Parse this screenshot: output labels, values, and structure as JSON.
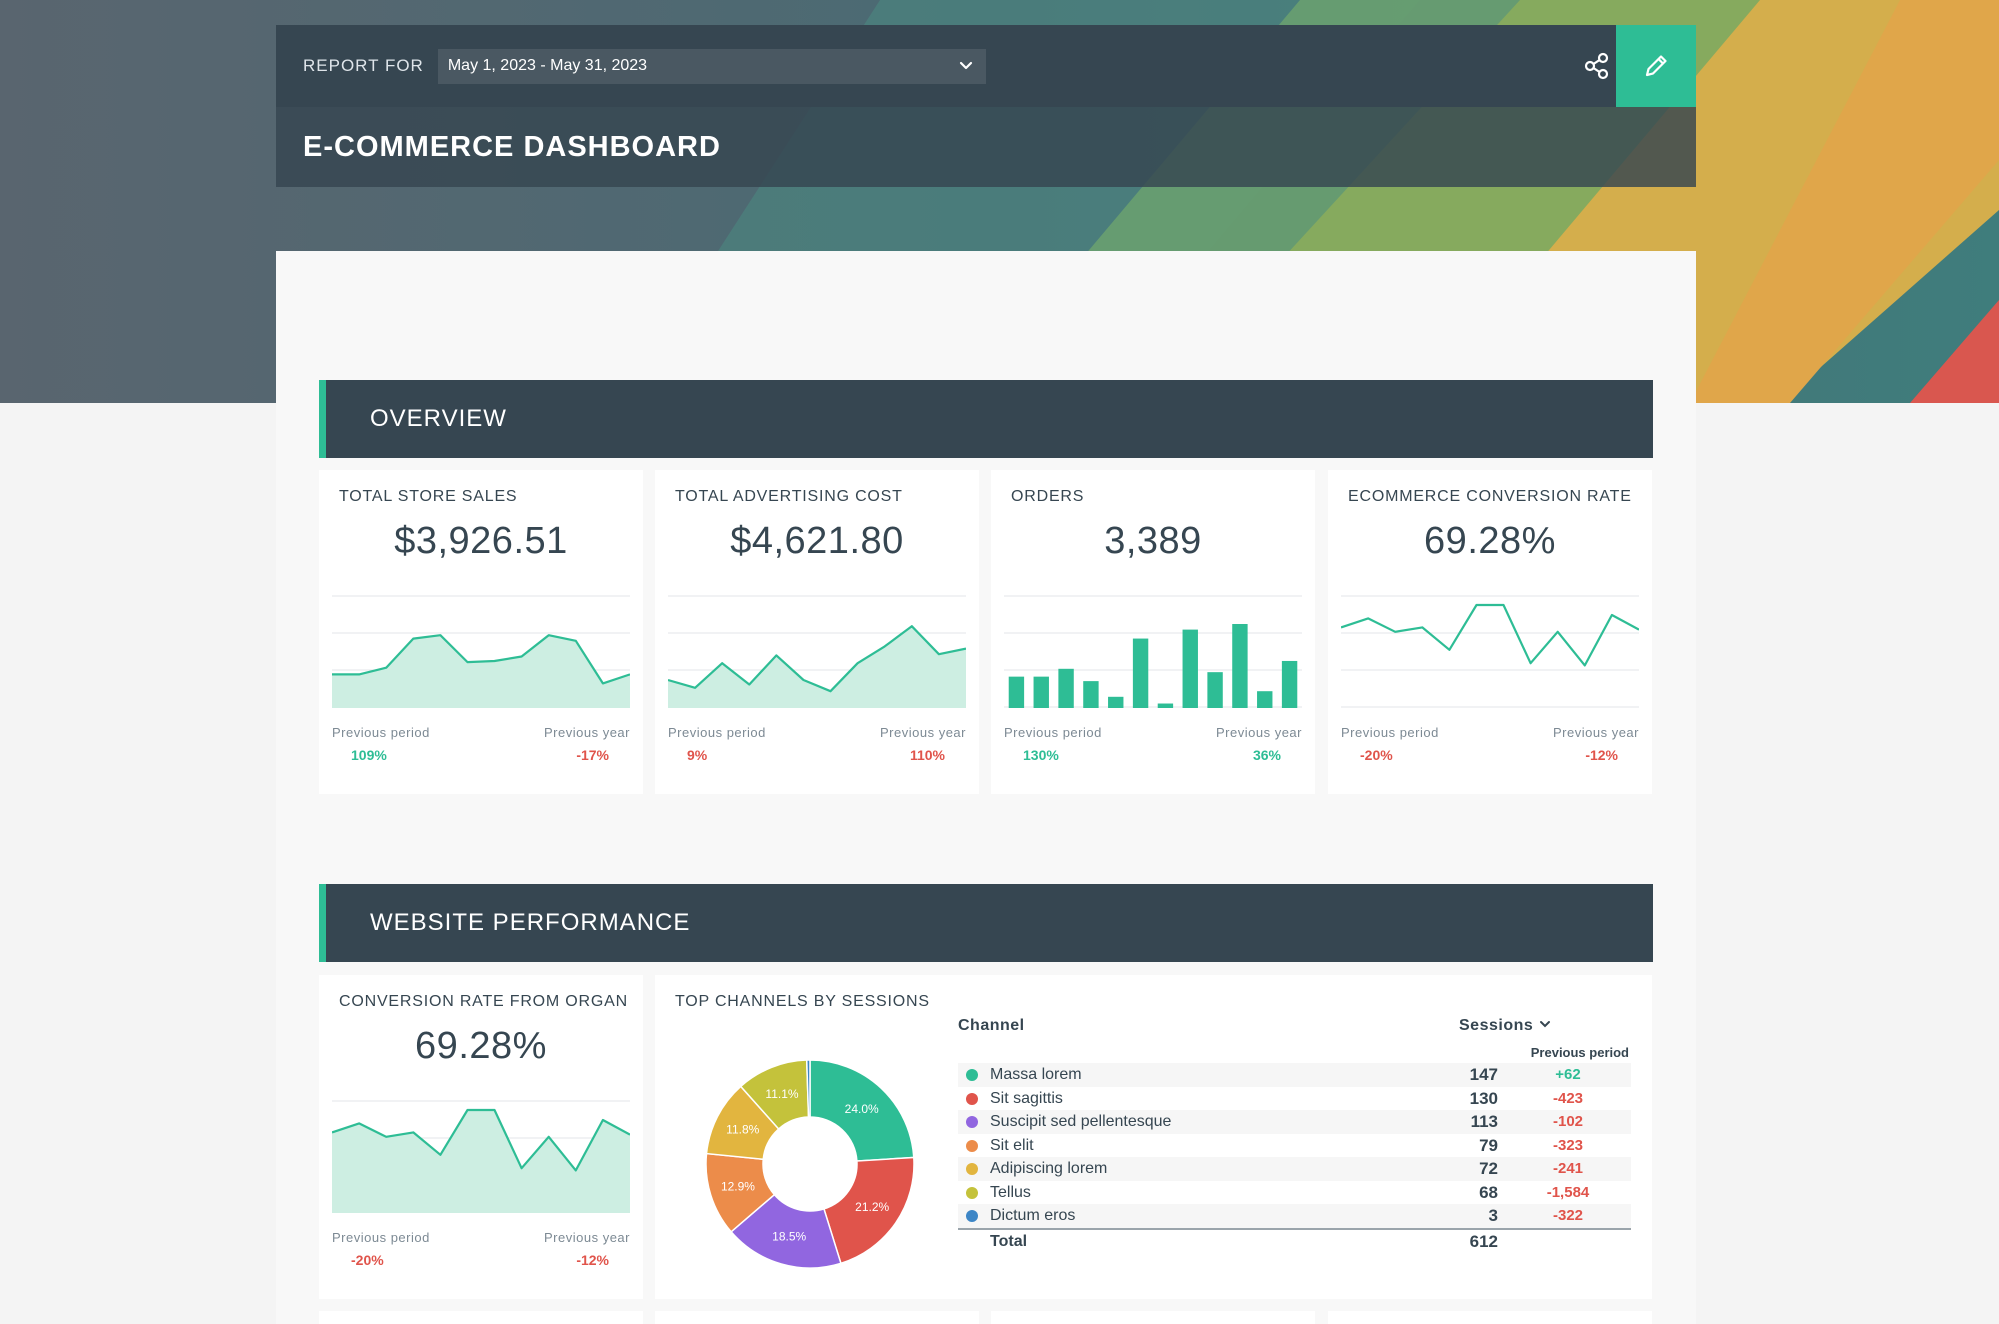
{
  "header": {
    "report_for_label": "REPORT FOR",
    "date_range": "May 1, 2023 - May 31, 2023",
    "title": "E-COMMERCE DASHBOARD"
  },
  "sections": {
    "overview": "OVERVIEW",
    "website_performance": "WEBSITE PERFORMANCE"
  },
  "kpis": [
    {
      "label": "TOTAL STORE SALES",
      "value": "$3,926.51",
      "prev_period_label": "Previous period",
      "prev_year_label": "Previous year",
      "prev_period": "109%",
      "prev_year": "-17%",
      "chart_type": "area",
      "series": [
        30,
        30,
        36,
        62,
        65,
        41,
        42,
        46,
        65,
        60,
        22,
        30
      ]
    },
    {
      "label": "TOTAL ADVERTISING COST",
      "value": "$4,621.80",
      "prev_period_label": "Previous period",
      "prev_year_label": "Previous year",
      "prev_period": "9%",
      "prev_year": "110%",
      "chart_type": "area",
      "series": [
        25,
        18,
        40,
        21,
        47,
        25,
        15,
        40,
        55,
        73,
        48,
        53
      ]
    },
    {
      "label": "ORDERS",
      "value": "3,389",
      "prev_period_label": "Previous period",
      "prev_year_label": "Previous year",
      "prev_period": "130%",
      "prev_year": "36%",
      "chart_type": "bar",
      "series": [
        28,
        28,
        35,
        24,
        10,
        62,
        4,
        70,
        32,
        75,
        15,
        42
      ]
    },
    {
      "label": "ECOMMERCE CONVERSION RATE",
      "value": "69.28%",
      "prev_period_label": "Previous period",
      "prev_year_label": "Previous year",
      "prev_period": "-20%",
      "prev_year": "-12%",
      "chart_type": "line",
      "series": [
        72,
        80,
        68,
        72,
        52,
        92,
        92,
        40,
        68,
        38,
        83,
        70
      ]
    },
    {
      "label": "CONVERSION RATE FROM ORGANI",
      "value": "69.28%",
      "prev_period_label": "Previous period",
      "prev_year_label": "Previous year",
      "prev_period": "-20%",
      "prev_year": "-12%",
      "chart_type": "area",
      "series": [
        72,
        80,
        68,
        72,
        52,
        92,
        92,
        40,
        68,
        38,
        83,
        70
      ]
    }
  ],
  "channels_card": {
    "label": "TOP CHANNELS BY SESSIONS",
    "col_channel": "Channel",
    "col_sessions": "Sessions",
    "col_previous": "Previous period",
    "total_label": "Total",
    "total": "612",
    "rows": [
      {
        "name": "Massa lorem",
        "sessions": "147",
        "change": "+62",
        "color": "#2ebd95"
      },
      {
        "name": "Sit sagittis",
        "sessions": "130",
        "change": "-423",
        "color": "#e0544b"
      },
      {
        "name": "Suscipit sed pellentesque",
        "sessions": "113",
        "change": "-102",
        "color": "#9166e0"
      },
      {
        "name": "Sit elit",
        "sessions": "79",
        "change": "-323",
        "color": "#ec8c4a"
      },
      {
        "name": "Adipiscing lorem",
        "sessions": "72",
        "change": "-241",
        "color": "#e2b53f"
      },
      {
        "name": "Tellus",
        "sessions": "68",
        "change": "-1,584",
        "color": "#c4c23b"
      },
      {
        "name": "Dictum eros",
        "sessions": "3",
        "change": "-322",
        "color": "#3d86c6"
      }
    ]
  },
  "chart_data": {
    "type": "pie",
    "labels": [
      "Massa lorem",
      "Sit sagittis",
      "Suscipit sed pellentesque",
      "Sit elit",
      "Adipiscing lorem",
      "Tellus",
      "Dictum eros"
    ],
    "values": [
      24.0,
      21.2,
      18.5,
      12.9,
      11.8,
      11.1,
      0.5
    ],
    "data_labels": [
      "24.0%",
      "21.2%",
      "18.5%",
      "12.9%",
      "11.8%",
      "11.1%",
      ""
    ],
    "colors": [
      "#2ebd95",
      "#e0544b",
      "#9166e0",
      "#ec8c4a",
      "#e2b53f",
      "#c4c23b",
      "#3d86c6"
    ]
  }
}
